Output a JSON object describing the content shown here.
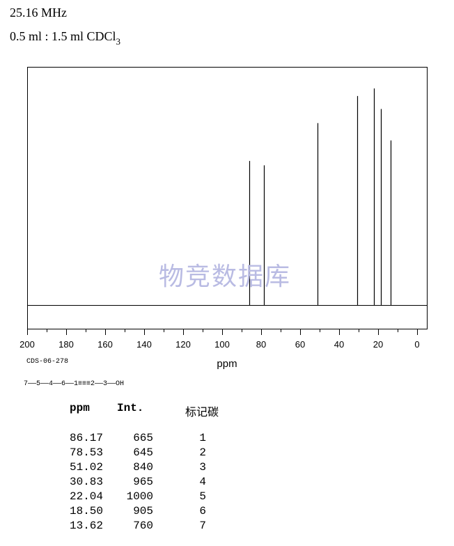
{
  "header": {
    "frequency": "25.16 MHz",
    "solvent_prefix": "0.5 ml : 1.5 ml CDCl",
    "solvent_subscript": "3"
  },
  "watermark": "物竞数据库",
  "code": "CDS-06-278",
  "structure": "7——5——4——6——1≡≡≡2——3——OH",
  "table": {
    "headers": [
      "ppm",
      "Int.",
      "标记碳"
    ],
    "rows": [
      [
        "86.17",
        "665",
        "1"
      ],
      [
        "78.53",
        "645",
        "2"
      ],
      [
        "51.02",
        "840",
        "3"
      ],
      [
        "30.83",
        "965",
        "4"
      ],
      [
        "22.04",
        "1000",
        "5"
      ],
      [
        "18.50",
        "905",
        "6"
      ],
      [
        "13.62",
        "760",
        "7"
      ]
    ]
  },
  "chart_data": {
    "type": "line",
    "xlabel": "ppm",
    "xlim": [
      200,
      0
    ],
    "xticks": [
      200,
      180,
      160,
      140,
      120,
      100,
      80,
      60,
      40,
      20,
      0
    ],
    "grid": false,
    "peaks": [
      {
        "ppm": 86.17,
        "intensity": 665
      },
      {
        "ppm": 78.53,
        "intensity": 645
      },
      {
        "ppm": 51.02,
        "intensity": 840
      },
      {
        "ppm": 30.83,
        "intensity": 965
      },
      {
        "ppm": 22.04,
        "intensity": 1000
      },
      {
        "ppm": 18.5,
        "intensity": 905
      },
      {
        "ppm": 13.62,
        "intensity": 760
      }
    ]
  }
}
